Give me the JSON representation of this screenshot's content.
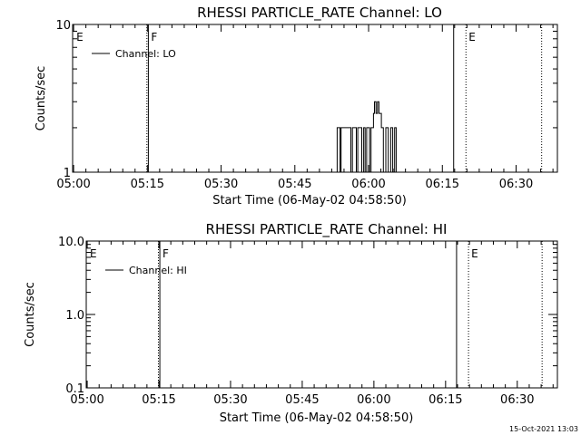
{
  "footer_timestamp": "15-Oct-2021 13:03",
  "chart_data": [
    {
      "type": "line",
      "title": "RHESSI PARTICLE_RATE Channel: LO",
      "xlabel": "Start Time (06-May-02 04:58:50)",
      "ylabel": "Counts/sec",
      "y_scale": "log",
      "ylim": [
        1,
        10
      ],
      "y_ticks": [
        {
          "value": 1,
          "label": "1"
        },
        {
          "value": 10,
          "label": "10"
        }
      ],
      "xlim_minutes": [
        -0.2,
        98.4
      ],
      "x_ticks": [
        {
          "value": 0,
          "label": "05:00"
        },
        {
          "value": 15,
          "label": "05:15"
        },
        {
          "value": 30,
          "label": "05:30"
        },
        {
          "value": 45,
          "label": "05:45"
        },
        {
          "value": 60,
          "label": "06:00"
        },
        {
          "value": 75,
          "label": "06:15"
        },
        {
          "value": 90,
          "label": "06:30"
        }
      ],
      "legend": {
        "position": "top-left",
        "entries": [
          "Channel: LO"
        ]
      },
      "markers": [
        {
          "minute": 0.0,
          "style": "none",
          "label": "E"
        },
        {
          "minute": 14.9,
          "style": "dotted",
          "label": ""
        },
        {
          "minute": 15.2,
          "style": "solid",
          "label": "F"
        },
        {
          "minute": 77.3,
          "style": "solid",
          "label": ""
        },
        {
          "minute": 79.8,
          "style": "dotted",
          "label": "E"
        },
        {
          "minute": 95.2,
          "style": "dotted",
          "label": ""
        }
      ],
      "series": [
        {
          "name": "Channel: LO",
          "x_minutes": [
            53.5,
            53.6,
            53.6,
            54.2,
            54.2,
            54.4,
            54.4,
            56.4,
            56.4,
            56.7,
            56.7,
            57.5,
            57.5,
            57.8,
            57.8,
            58.6,
            58.6,
            59.0,
            59.0,
            59.3,
            59.3,
            59.6,
            59.6,
            60.2,
            60.2,
            60.5,
            60.5,
            61.0,
            61.0,
            61.2,
            61.2,
            61.5,
            61.5,
            61.8,
            61.8,
            62.1,
            62.1,
            62.6,
            62.6,
            63.0,
            63.0,
            63.5,
            63.5,
            64.0,
            64.0,
            64.5,
            64.5,
            64.9,
            64.9,
            65.3,
            65.3,
            65.6,
            65.6,
            66.0,
            66.0
          ],
          "values": [
            1,
            1,
            2,
            2,
            1,
            1,
            2,
            2,
            1,
            1,
            2,
            2,
            1,
            1,
            2,
            2,
            1,
            1,
            2,
            2,
            1,
            1,
            2,
            2,
            1,
            1,
            2,
            2,
            2.5,
            2.5,
            3,
            3,
            2.5,
            2.5,
            3,
            3,
            2.5,
            2.5,
            2,
            2,
            1,
            1,
            2,
            2,
            1,
            1,
            2,
            2,
            1,
            1,
            2,
            2,
            1,
            1,
            1
          ]
        }
      ]
    },
    {
      "type": "line",
      "title": "RHESSI PARTICLE_RATE Channel: HI",
      "xlabel": "Start Time (06-May-02 04:58:50)",
      "ylabel": "Counts/sec",
      "y_scale": "log",
      "ylim": [
        0.1,
        10
      ],
      "y_ticks": [
        {
          "value": 0.1,
          "label": "0.1"
        },
        {
          "value": 1,
          "label": "1.0"
        },
        {
          "value": 10,
          "label": "10.0"
        }
      ],
      "xlim_minutes": [
        -0.2,
        98.4
      ],
      "x_ticks": [
        {
          "value": 0,
          "label": "05:00"
        },
        {
          "value": 15,
          "label": "05:15"
        },
        {
          "value": 30,
          "label": "05:30"
        },
        {
          "value": 45,
          "label": "05:45"
        },
        {
          "value": 60,
          "label": "06:00"
        },
        {
          "value": 75,
          "label": "06:15"
        },
        {
          "value": 90,
          "label": "06:30"
        }
      ],
      "legend": {
        "position": "top-left",
        "entries": [
          "Channel: HI"
        ]
      },
      "markers": [
        {
          "minute": 0.0,
          "style": "none",
          "label": "E"
        },
        {
          "minute": 14.9,
          "style": "dotted",
          "label": ""
        },
        {
          "minute": 15.2,
          "style": "solid",
          "label": "F"
        },
        {
          "minute": 77.3,
          "style": "solid",
          "label": ""
        },
        {
          "minute": 79.8,
          "style": "dotted",
          "label": "E"
        },
        {
          "minute": 95.2,
          "style": "dotted",
          "label": ""
        }
      ],
      "series": [
        {
          "name": "Channel: HI",
          "x_minutes": [],
          "values": []
        }
      ]
    }
  ]
}
